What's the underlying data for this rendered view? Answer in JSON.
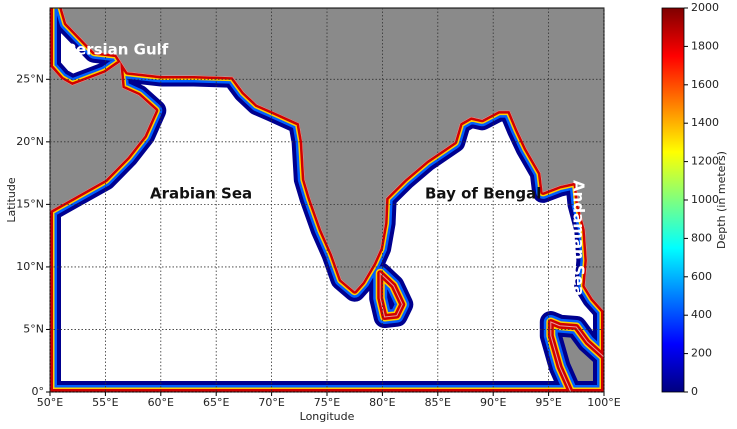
{
  "map": {
    "xlabel": "Longitude",
    "ylabel": "Latitude",
    "xlim": [
      50,
      100
    ],
    "ylim": [
      0,
      30.7
    ],
    "xticks": [
      {
        "value": 50,
        "label": "50°E"
      },
      {
        "value": 55,
        "label": "55°E"
      },
      {
        "value": 60,
        "label": "60°E"
      },
      {
        "value": 65,
        "label": "65°E"
      },
      {
        "value": 70,
        "label": "70°E"
      },
      {
        "value": 75,
        "label": "75°E"
      },
      {
        "value": 80,
        "label": "80°E"
      },
      {
        "value": 85,
        "label": "85°E"
      },
      {
        "value": 90,
        "label": "90°E"
      },
      {
        "value": 95,
        "label": "95°E"
      },
      {
        "value": 100,
        "label": "100°E"
      }
    ],
    "yticks": [
      {
        "value": 0,
        "label": "0°"
      },
      {
        "value": 5,
        "label": "5°N"
      },
      {
        "value": 10,
        "label": "10°N"
      },
      {
        "value": 15,
        "label": "15°N"
      },
      {
        "value": 20,
        "label": "20°N"
      },
      {
        "value": 25,
        "label": "25°N"
      }
    ],
    "grid": true,
    "region_labels": [
      "Persian Gulf",
      "Arabian Sea",
      "Bay of Bengal",
      "Andaman Sea"
    ]
  },
  "colorbar": {
    "label": "Depth (in meters)",
    "lim": [
      0,
      2000
    ],
    "ticks": [
      0,
      200,
      400,
      600,
      800,
      1000,
      1200,
      1400,
      1600,
      1800,
      2000
    ],
    "colormap": "jet"
  }
}
